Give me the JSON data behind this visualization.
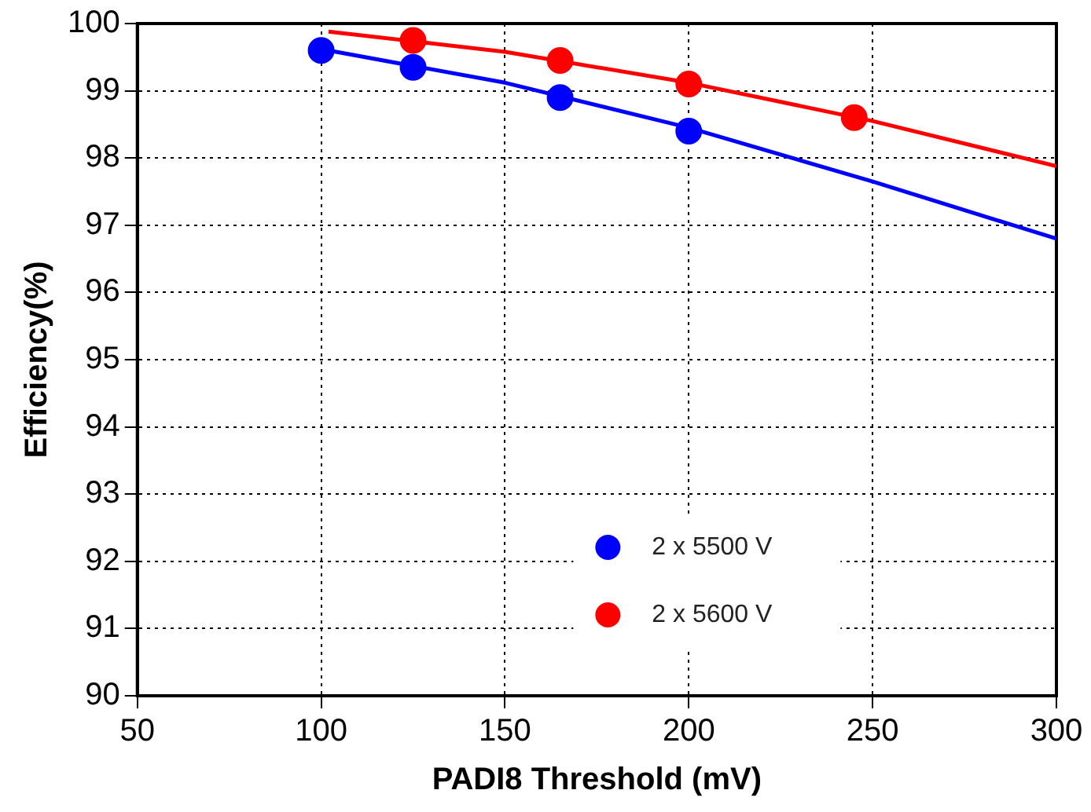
{
  "chart_data": {
    "type": "scatter",
    "xlabel": "PADI8 Threshold (mV)",
    "ylabel": "Efficiency(%)",
    "xlim": [
      50,
      300
    ],
    "xticks": [
      50,
      100,
      150,
      200,
      250,
      300
    ],
    "ylim": [
      90,
      100
    ],
    "yticks": [
      90,
      91,
      92,
      93,
      94,
      95,
      96,
      97,
      98,
      99,
      100
    ],
    "grid": true,
    "legend": "bottom",
    "series": [
      {
        "name": "2 x 5500 V",
        "color": "#0000ff",
        "marker": "circle",
        "x": [
          100,
          125,
          165,
          200
        ],
        "values": [
          99.6,
          99.35,
          98.9,
          98.4
        ]
      },
      {
        "name": "2 x 5600 V",
        "color": "#ff0000",
        "marker": "circle",
        "x": [
          125,
          165,
          200,
          245
        ],
        "values": [
          99.75,
          99.45,
          99.1,
          98.6
        ]
      },
      {
        "type": "line",
        "color": "#0000ff",
        "line_style": "solid",
        "marker": "none",
        "x": [
          100,
          150,
          200,
          250,
          300
        ],
        "values": [
          99.62,
          99.12,
          98.45,
          97.65,
          96.8
        ]
      },
      {
        "type": "line",
        "color": "#ff0000",
        "line_style": "solid",
        "marker": "none",
        "x": [
          102,
          150,
          200,
          250,
          300
        ],
        "values": [
          99.88,
          99.58,
          99.12,
          98.55,
          97.88
        ]
      }
    ]
  }
}
